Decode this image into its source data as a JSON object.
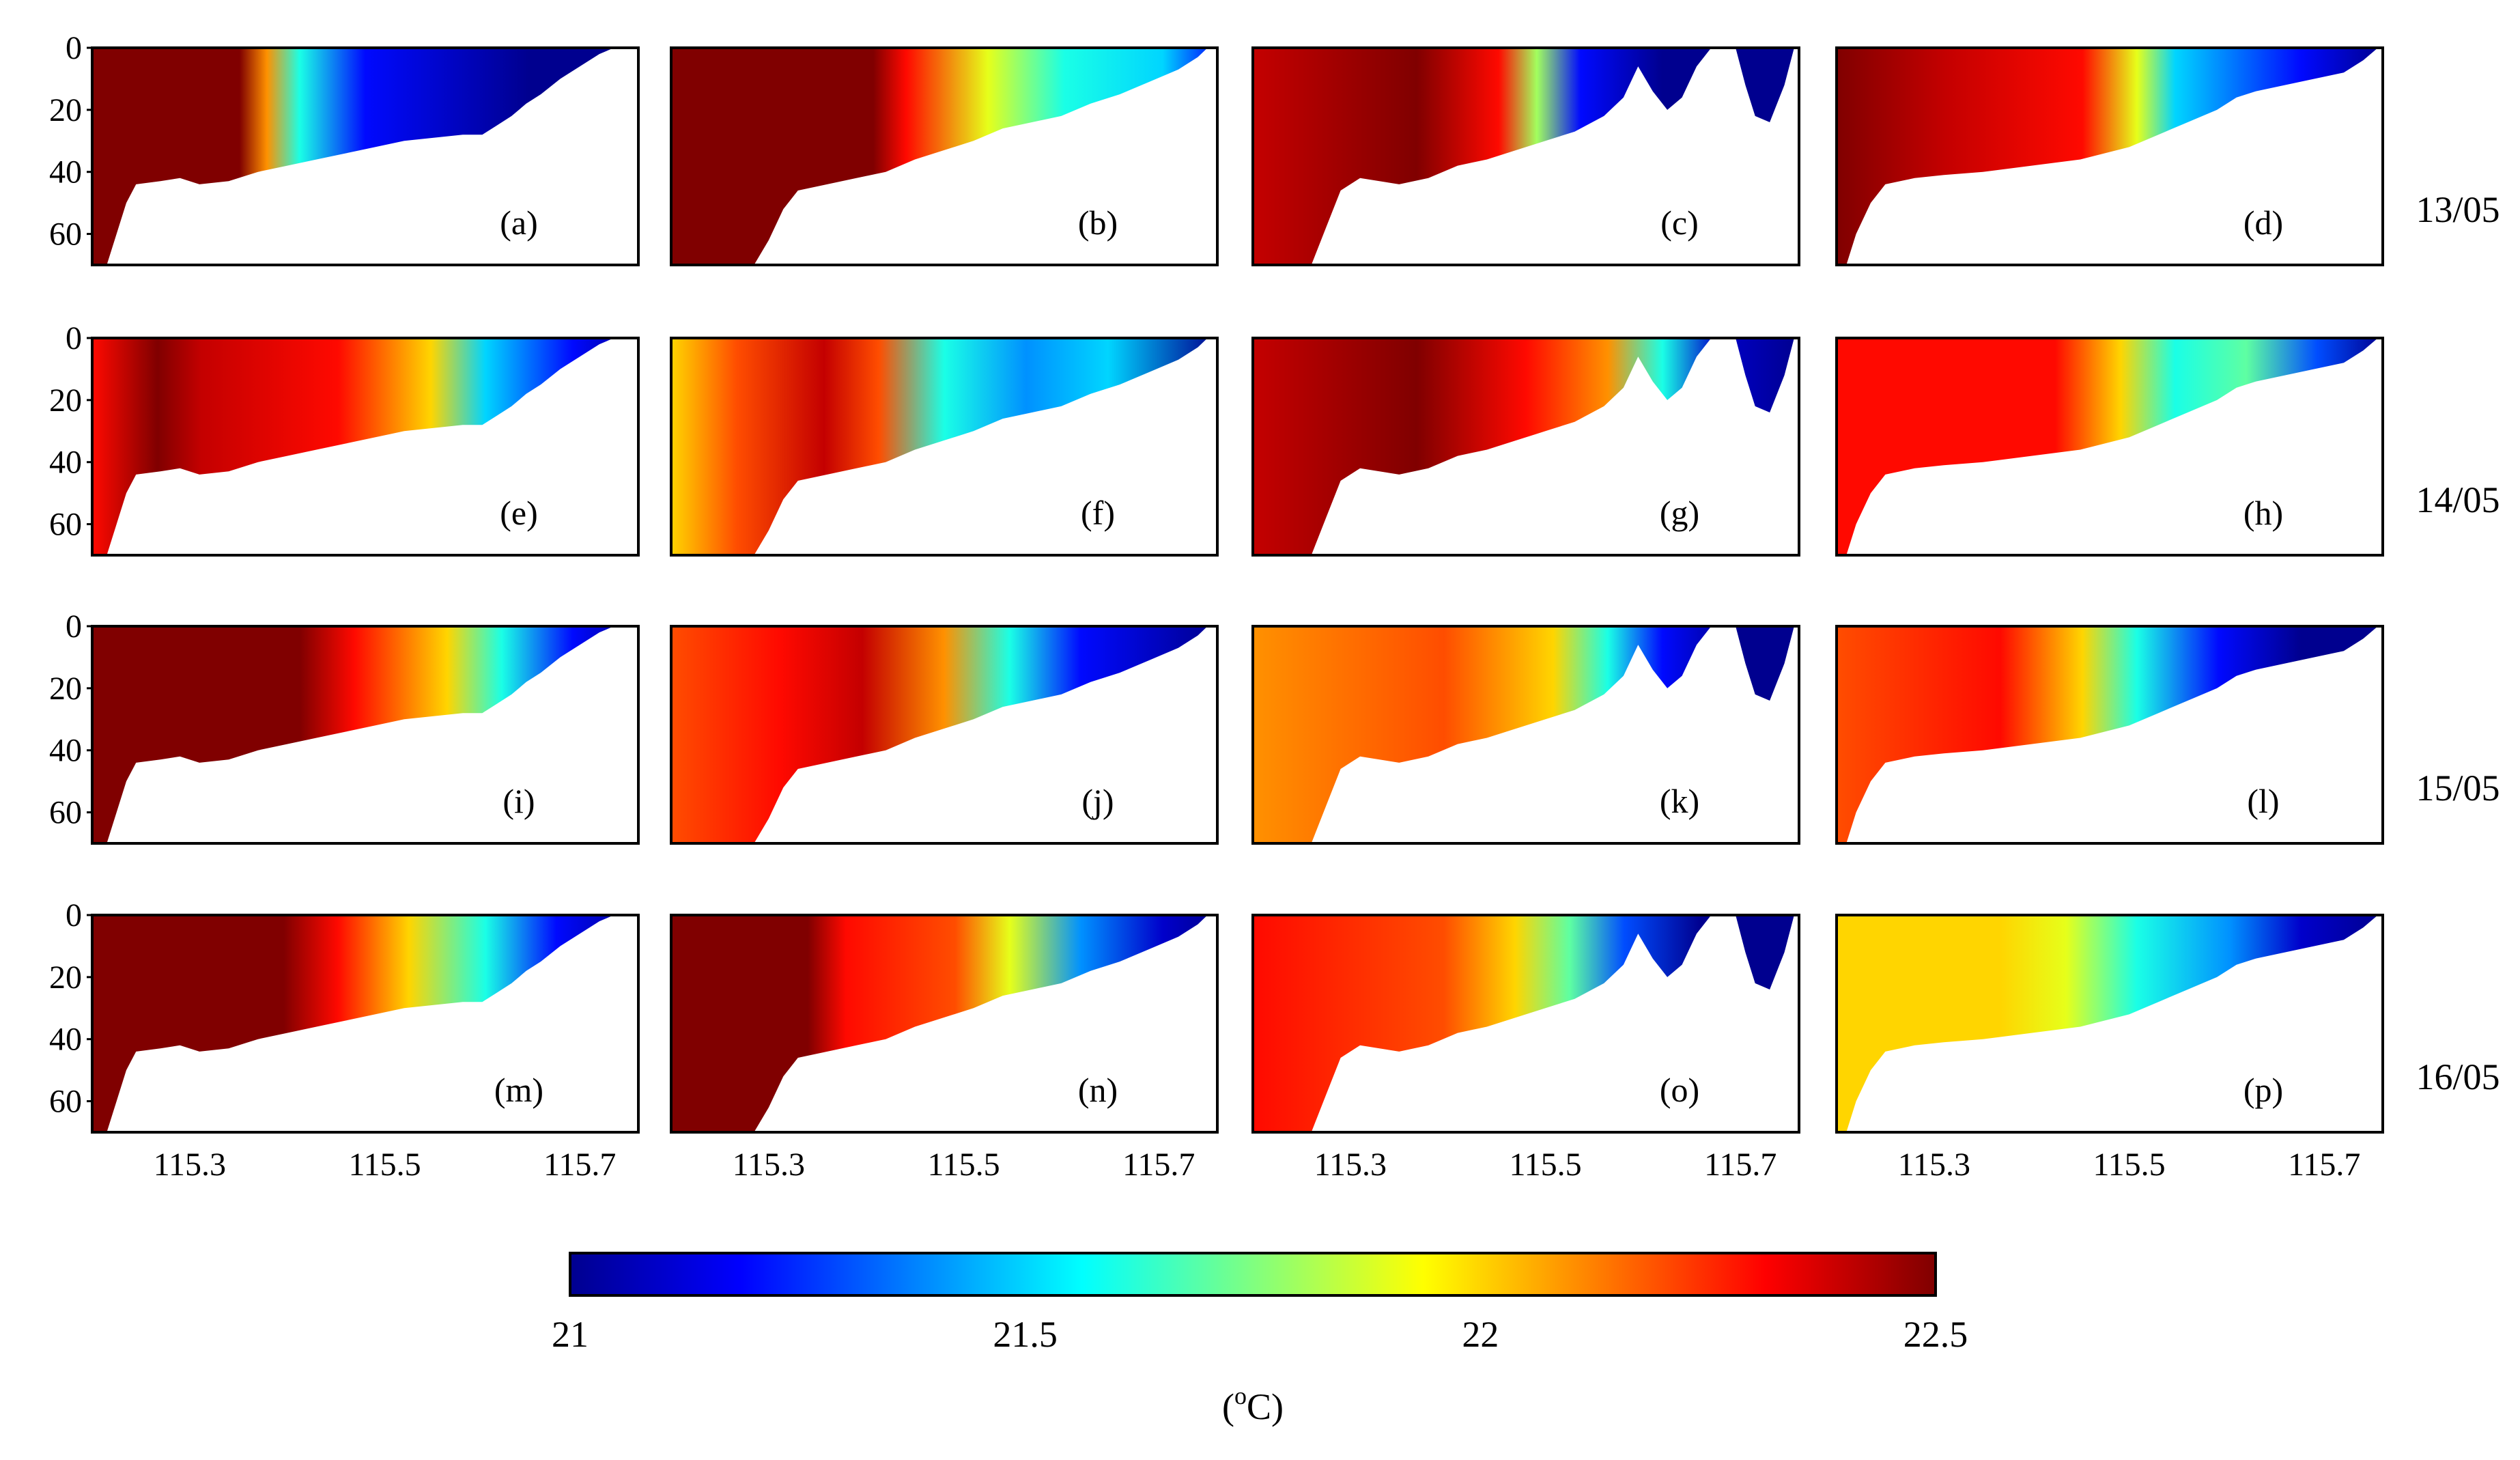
{
  "chart_data": {
    "type": "heatmap",
    "title": "",
    "xlabel": "",
    "ylabel": "",
    "x_ticks": [
      "115.3",
      "115.5",
      "115.7"
    ],
    "x_tick_values": [
      115.3,
      115.5,
      115.7
    ],
    "xlim": [
      115.2,
      115.76
    ],
    "y_ticks": [
      "0",
      "20",
      "40",
      "60"
    ],
    "y_tick_values": [
      0,
      20,
      40,
      60
    ],
    "ylim": [
      0,
      70
    ],
    "rows": [
      {
        "date": "13/05",
        "panels": [
          "(a)",
          "(b)",
          "(c)",
          "(d)"
        ]
      },
      {
        "date": "14/05",
        "panels": [
          "(e)",
          "(f)",
          "(g)",
          "(h)"
        ]
      },
      {
        "date": "15/05",
        "panels": [
          "(i)",
          "(j)",
          "(k)",
          "(l)"
        ]
      },
      {
        "date": "16/05",
        "panels": [
          "(m)",
          "(n)",
          "(o)",
          "(p)"
        ]
      }
    ],
    "panels": [
      {
        "label": "(a)",
        "stops": [
          [
            0,
            22.5
          ],
          [
            0.27,
            22.5
          ],
          [
            0.32,
            22.1
          ],
          [
            0.38,
            21.6
          ],
          [
            0.5,
            21.2
          ],
          [
            0.8,
            21.0
          ],
          [
            1,
            21.0
          ]
        ]
      },
      {
        "label": "(b)",
        "stops": [
          [
            0,
            22.5
          ],
          [
            0.37,
            22.5
          ],
          [
            0.43,
            22.3
          ],
          [
            0.58,
            21.9
          ],
          [
            0.72,
            21.6
          ],
          [
            0.9,
            21.5
          ],
          [
            1,
            21.2
          ]
        ]
      },
      {
        "label": "(c)",
        "stops": [
          [
            0,
            22.4
          ],
          [
            0.3,
            22.5
          ],
          [
            0.45,
            22.3
          ],
          [
            0.52,
            21.8
          ],
          [
            0.6,
            21.2
          ],
          [
            0.75,
            21.0
          ],
          [
            1,
            21.0
          ]
        ]
      },
      {
        "label": "(d)",
        "stops": [
          [
            0,
            22.5
          ],
          [
            0.2,
            22.4
          ],
          [
            0.45,
            22.3
          ],
          [
            0.55,
            21.9
          ],
          [
            0.62,
            21.5
          ],
          [
            0.85,
            21.2
          ],
          [
            1,
            21.0
          ]
        ]
      },
      {
        "label": "(e)",
        "stops": [
          [
            0,
            22.3
          ],
          [
            0.12,
            22.5
          ],
          [
            0.2,
            22.4
          ],
          [
            0.45,
            22.3
          ],
          [
            0.62,
            22.0
          ],
          [
            0.72,
            21.5
          ],
          [
            0.88,
            21.2
          ],
          [
            1,
            21.0
          ]
        ]
      },
      {
        "label": "(f)",
        "stops": [
          [
            0,
            22.0
          ],
          [
            0.12,
            22.2
          ],
          [
            0.28,
            22.4
          ],
          [
            0.38,
            22.2
          ],
          [
            0.5,
            21.6
          ],
          [
            0.65,
            21.4
          ],
          [
            0.8,
            21.5
          ],
          [
            1,
            21.0
          ]
        ]
      },
      {
        "label": "(g)",
        "stops": [
          [
            0,
            22.4
          ],
          [
            0.3,
            22.5
          ],
          [
            0.5,
            22.3
          ],
          [
            0.65,
            22.1
          ],
          [
            0.75,
            21.6
          ],
          [
            0.85,
            21.1
          ],
          [
            1,
            21.0
          ]
        ]
      },
      {
        "label": "(h)",
        "stops": [
          [
            0,
            22.3
          ],
          [
            0.4,
            22.3
          ],
          [
            0.52,
            22.0
          ],
          [
            0.62,
            21.6
          ],
          [
            0.75,
            21.7
          ],
          [
            0.88,
            21.3
          ],
          [
            1,
            21.0
          ]
        ]
      },
      {
        "label": "(i)",
        "stops": [
          [
            0,
            22.5
          ],
          [
            0.38,
            22.5
          ],
          [
            0.48,
            22.3
          ],
          [
            0.65,
            22.0
          ],
          [
            0.75,
            21.6
          ],
          [
            0.88,
            21.2
          ],
          [
            1,
            21.0
          ]
        ]
      },
      {
        "label": "(j)",
        "stops": [
          [
            0,
            22.2
          ],
          [
            0.2,
            22.3
          ],
          [
            0.35,
            22.4
          ],
          [
            0.5,
            22.1
          ],
          [
            0.62,
            21.6
          ],
          [
            0.75,
            21.2
          ],
          [
            1,
            21.0
          ]
        ]
      },
      {
        "label": "(k)",
        "stops": [
          [
            0,
            22.1
          ],
          [
            0.35,
            22.2
          ],
          [
            0.55,
            22.0
          ],
          [
            0.65,
            21.6
          ],
          [
            0.75,
            21.2
          ],
          [
            0.88,
            21.0
          ],
          [
            1,
            21.0
          ]
        ]
      },
      {
        "label": "(l)",
        "stops": [
          [
            0,
            22.2
          ],
          [
            0.3,
            22.3
          ],
          [
            0.45,
            22.0
          ],
          [
            0.55,
            21.6
          ],
          [
            0.7,
            21.2
          ],
          [
            0.85,
            21.0
          ],
          [
            1,
            21.0
          ]
        ]
      },
      {
        "label": "(m)",
        "stops": [
          [
            0,
            22.5
          ],
          [
            0.35,
            22.5
          ],
          [
            0.45,
            22.3
          ],
          [
            0.58,
            22.0
          ],
          [
            0.72,
            21.6
          ],
          [
            0.85,
            21.2
          ],
          [
            1,
            21.0
          ]
        ]
      },
      {
        "label": "(n)",
        "stops": [
          [
            0,
            22.5
          ],
          [
            0.25,
            22.5
          ],
          [
            0.32,
            22.3
          ],
          [
            0.52,
            22.2
          ],
          [
            0.62,
            21.9
          ],
          [
            0.75,
            21.4
          ],
          [
            0.9,
            21.1
          ],
          [
            1,
            21.0
          ]
        ]
      },
      {
        "label": "(o)",
        "stops": [
          [
            0,
            22.3
          ],
          [
            0.35,
            22.2
          ],
          [
            0.48,
            22.0
          ],
          [
            0.58,
            21.7
          ],
          [
            0.68,
            21.3
          ],
          [
            0.82,
            21.0
          ],
          [
            1,
            21.0
          ]
        ]
      },
      {
        "label": "(p)",
        "stops": [
          [
            0,
            22.0
          ],
          [
            0.3,
            22.0
          ],
          [
            0.42,
            21.9
          ],
          [
            0.55,
            21.6
          ],
          [
            0.72,
            21.4
          ],
          [
            0.85,
            21.1
          ],
          [
            1,
            21.0
          ]
        ]
      }
    ],
    "colorbar": {
      "min": 21,
      "max": 22.5,
      "ticks": [
        "21",
        "21.5",
        "22",
        "22.5"
      ],
      "tick_values": [
        21,
        21.5,
        22,
        22.5
      ],
      "colormap": "jet",
      "colors": [
        "#00008f",
        "#0000ff",
        "#0080ff",
        "#00ffff",
        "#80ff80",
        "#ffff00",
        "#ff8000",
        "#ff0000",
        "#800000"
      ],
      "unit_open": "(",
      "unit_sup": "o",
      "unit_close": "C)"
    }
  }
}
